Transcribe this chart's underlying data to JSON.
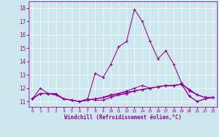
{
  "xlabel": "Windchill (Refroidissement éolien,°C)",
  "background_color": "#cce8ee",
  "line_color": "#990099",
  "xlim": [
    -0.5,
    23.5
  ],
  "ylim": [
    10.6,
    18.5
  ],
  "yticks": [
    11,
    12,
    13,
    14,
    15,
    16,
    17,
    18
  ],
  "xticks": [
    0,
    1,
    2,
    3,
    4,
    5,
    6,
    7,
    8,
    9,
    10,
    11,
    12,
    13,
    14,
    15,
    16,
    17,
    18,
    19,
    20,
    21,
    22,
    23
  ],
  "series": [
    [
      11.2,
      12.0,
      11.6,
      11.6,
      11.2,
      11.1,
      11.0,
      11.1,
      13.1,
      12.8,
      13.8,
      15.1,
      15.5,
      17.9,
      17.0,
      15.5,
      14.2,
      14.8,
      13.8,
      12.4,
      11.8,
      11.5,
      11.3,
      11.3
    ],
    [
      11.2,
      11.6,
      11.6,
      11.5,
      11.2,
      11.1,
      11.0,
      11.1,
      11.2,
      11.3,
      11.4,
      11.5,
      11.6,
      11.8,
      11.9,
      12.0,
      12.1,
      12.2,
      12.2,
      12.3,
      11.9,
      11.5,
      11.3,
      11.3
    ],
    [
      11.2,
      11.6,
      11.6,
      11.5,
      11.2,
      11.1,
      11.0,
      11.1,
      11.2,
      11.3,
      11.5,
      11.6,
      11.7,
      11.8,
      11.9,
      12.0,
      12.1,
      12.2,
      12.2,
      12.3,
      11.9,
      11.5,
      11.3,
      11.3
    ],
    [
      11.2,
      11.6,
      11.6,
      11.5,
      11.2,
      11.1,
      11.0,
      11.1,
      11.2,
      11.3,
      11.5,
      11.6,
      11.8,
      12.0,
      12.2,
      12.0,
      12.1,
      12.2,
      12.2,
      12.3,
      11.4,
      11.0,
      11.2,
      11.3
    ],
    [
      11.2,
      11.6,
      11.6,
      11.5,
      11.2,
      11.1,
      11.0,
      11.2,
      11.1,
      11.1,
      11.3,
      11.5,
      11.6,
      11.8,
      11.9,
      12.0,
      12.1,
      12.2,
      12.2,
      12.3,
      11.4,
      11.0,
      11.2,
      11.3
    ]
  ]
}
